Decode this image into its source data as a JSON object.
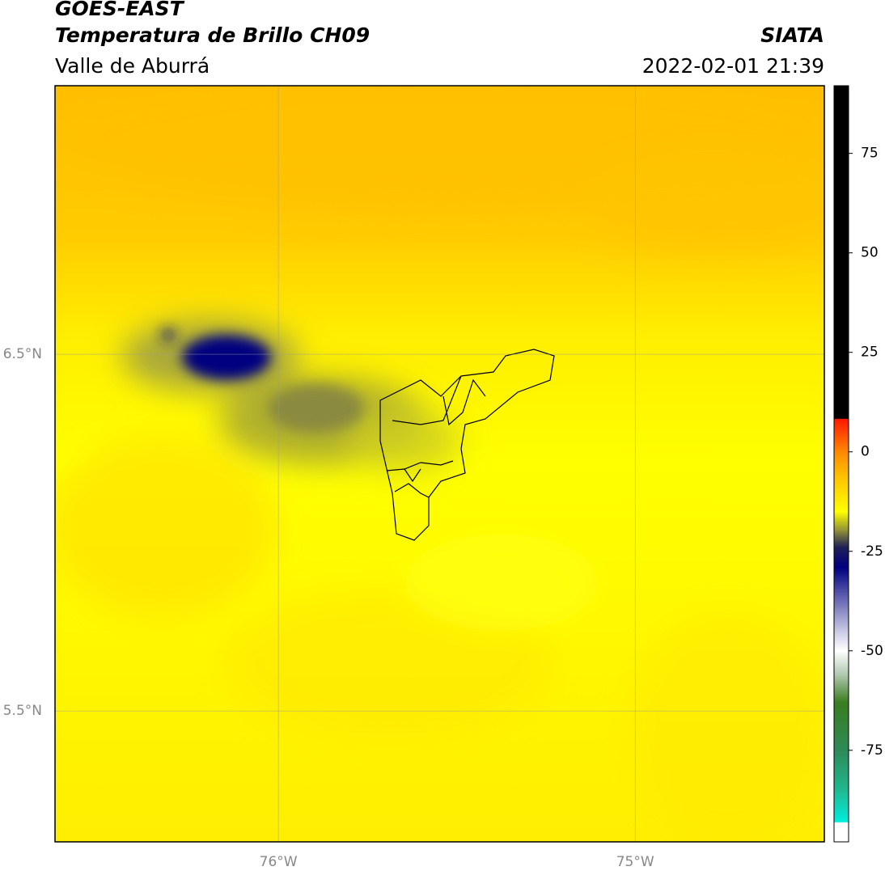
{
  "header": {
    "title": "GOES-EAST",
    "product": "Temperatura de Brillo CH09",
    "region": "Valle de Aburrá",
    "source": "SIATA",
    "datetime": "2022-02-01 21:39"
  },
  "map": {
    "xlim": [
      -76.626,
      -74.47
    ],
    "ylim": [
      5.133,
      7.253
    ],
    "xticks": [
      {
        "value": -76,
        "label": "76°W"
      },
      {
        "value": -75,
        "label": "75°W"
      }
    ],
    "yticks": [
      {
        "value": 6.5,
        "label": "6.5°N"
      },
      {
        "value": 5.5,
        "label": "5.5°N"
      }
    ],
    "grid": true
  },
  "colorbar": {
    "lim": [
      -98,
      92
    ],
    "ticks": [
      75,
      50,
      25,
      0,
      -25,
      -50,
      -75
    ],
    "stops": [
      {
        "value": -98,
        "color": "#ffffff"
      },
      {
        "value": -93.2,
        "color": "#ffffff"
      },
      {
        "value": -93,
        "color": "#00eedd"
      },
      {
        "value": -85,
        "color": "#20b890"
      },
      {
        "value": -75,
        "color": "#2e8b57"
      },
      {
        "value": -63,
        "color": "#3a7d20"
      },
      {
        "value": -56,
        "color": "#b0c8b0"
      },
      {
        "value": -50,
        "color": "#ffffff"
      },
      {
        "value": -45,
        "color": "#c8c8e4"
      },
      {
        "value": -36,
        "color": "#5a5aac"
      },
      {
        "value": -29,
        "color": "#000080"
      },
      {
        "value": -24,
        "color": "#202058"
      },
      {
        "value": -20,
        "color": "#8a8a3a"
      },
      {
        "value": -15,
        "color": "#ffff00"
      },
      {
        "value": -6,
        "color": "#ffc000"
      },
      {
        "value": 0,
        "color": "#ff8800"
      },
      {
        "value": 8.2,
        "color": "#ff1800"
      },
      {
        "value": 8.4,
        "color": "#000000"
      },
      {
        "value": 92,
        "color": "#000000"
      }
    ]
  }
}
